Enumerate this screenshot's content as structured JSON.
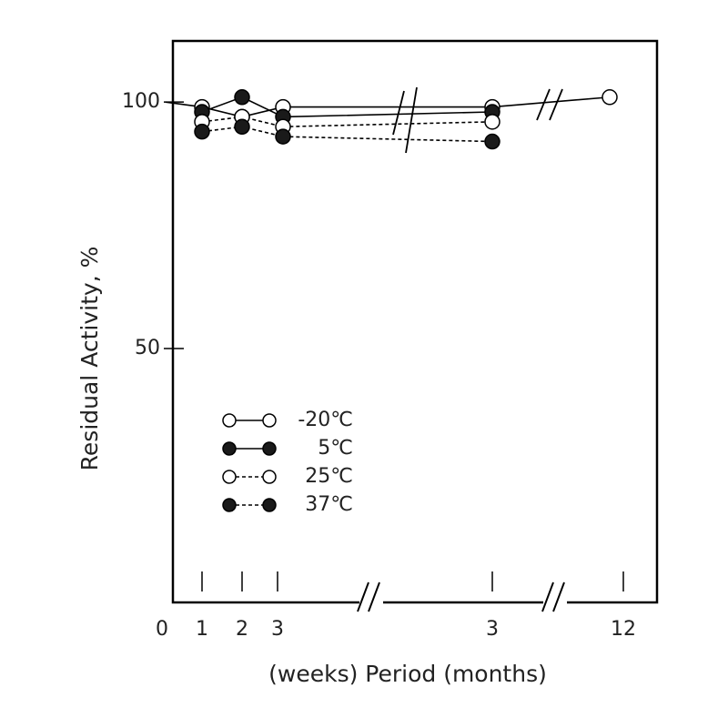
{
  "chart_data": {
    "type": "line",
    "xlabel": "(weeks) Period (months)",
    "ylabel": "Residual Activity, %",
    "categories": [
      "0",
      "1",
      "2",
      "3",
      "3",
      "12"
    ],
    "ylim": [
      -1.5,
      112.4
    ],
    "yticks": [
      50,
      100
    ],
    "series": [
      {
        "name": "-20℃",
        "color": "#000000",
        "marker": "open",
        "dash": false,
        "values": [
          100,
          99,
          97,
          99,
          99,
          101
        ]
      },
      {
        "name": "5℃",
        "color": "#000000",
        "marker": "filled",
        "dash": false,
        "values": [
          null,
          98,
          101,
          97,
          98,
          null
        ]
      },
      {
        "name": "25℃",
        "color": "#000000",
        "marker": "open",
        "dash": true,
        "values": [
          null,
          96,
          97,
          95,
          96,
          null
        ]
      },
      {
        "name": "37℃",
        "color": "#000000",
        "marker": "filled",
        "dash": true,
        "values": [
          null,
          94,
          95,
          93,
          92,
          null
        ]
      }
    ]
  }
}
